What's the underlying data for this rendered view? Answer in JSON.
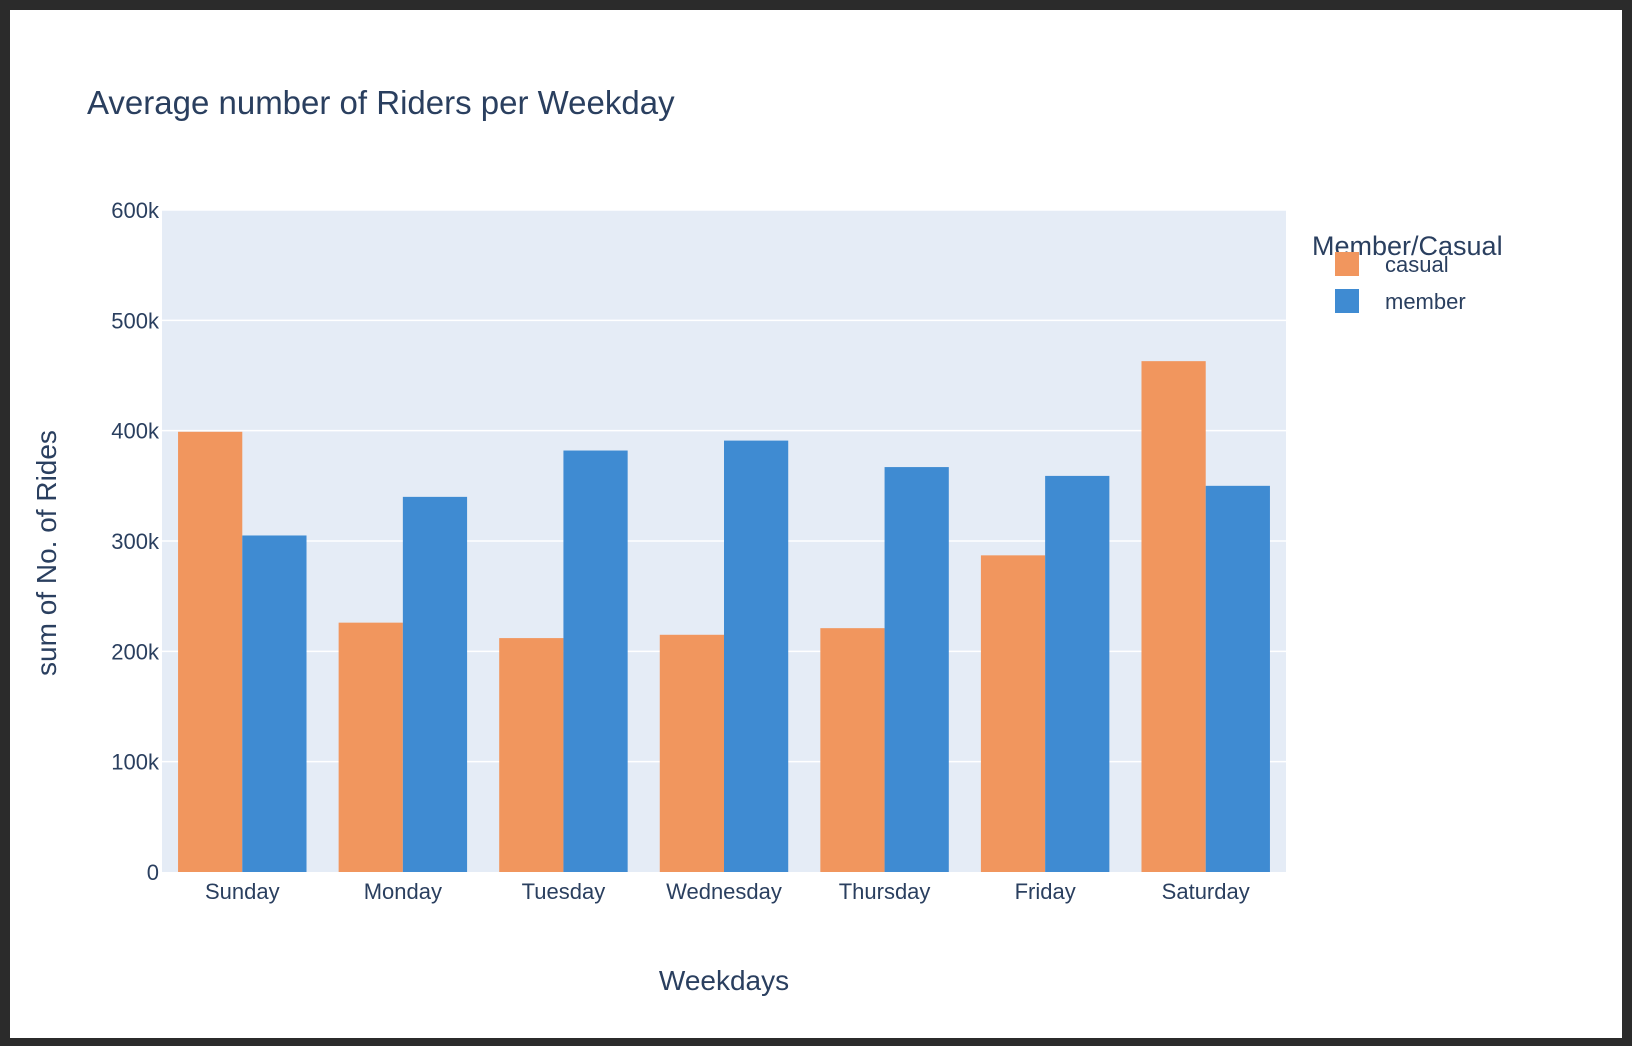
{
  "chart_data": {
    "type": "bar",
    "title": "Average number of Riders per Weekday",
    "xlabel": "Weekdays",
    "ylabel": "sum of No. of Rides",
    "categories": [
      "Sunday",
      "Monday",
      "Tuesday",
      "Wednesday",
      "Thursday",
      "Friday",
      "Saturday"
    ],
    "series": [
      {
        "name": "casual",
        "color": "#f1965e",
        "values": [
          399000,
          226000,
          212000,
          215000,
          221000,
          287000,
          463000
        ]
      },
      {
        "name": "member",
        "color": "#3f8bd2",
        "values": [
          305000,
          340000,
          382000,
          391000,
          367000,
          359000,
          350000
        ]
      }
    ],
    "ylim": [
      0,
      600000
    ],
    "yticks": [
      0,
      100000,
      200000,
      300000,
      400000,
      500000,
      600000
    ],
    "ytick_labels": [
      "0",
      "100k",
      "200k",
      "300k",
      "400k",
      "500k",
      "600k"
    ],
    "grid": true,
    "legend": {
      "title": "Member/Casual",
      "placement": "top-right"
    },
    "plot_background": "#e5ecf6",
    "text_color": "#2a3f5f"
  }
}
